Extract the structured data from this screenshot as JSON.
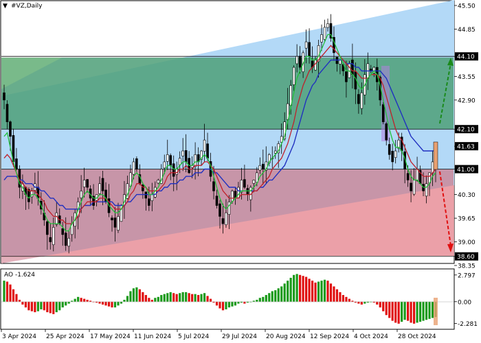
{
  "window": {
    "symbol_title": "#VZ,Daily",
    "oscillator_title": "AO -1.624"
  },
  "colors": {
    "background": "#ffffff",
    "up_channel": "#b3d9f7",
    "green_zone": "#4d9f78",
    "green_zone_light": "#86c389",
    "red_zone": "#c98d9e",
    "red_zone_light": "#f4a3a8",
    "candle": "#000000",
    "ma_fast": "#22c03a",
    "ma_mid": "#c0202a",
    "ma_slow": "#2030c0",
    "ao_up": "#1a9a1a",
    "ao_down": "#e01010",
    "arrow_up": "#1a8a1a",
    "arrow_down": "#e01010",
    "highlight_candle": "#e8a070",
    "purple_bar": "#b080e0"
  },
  "price_axis": {
    "labels": [
      "45.50",
      "44.85",
      "44.10",
      "43.55",
      "42.90",
      "42.10",
      "41.63",
      "41.00",
      "40.30",
      "39.65",
      "39.00",
      "38.60",
      "38.35"
    ],
    "highlighted": [
      "44.10",
      "42.10",
      "41.63",
      "41.00",
      "38.60"
    ]
  },
  "ao_axis": {
    "labels": [
      "2.797",
      "0.00",
      "-2.281"
    ]
  },
  "time_axis": {
    "labels": [
      "3 Apr 2024",
      "25 Apr 2024",
      "17 May 2024",
      "11 Jun 2024",
      "5 Jul 2024",
      "29 Jul 2024",
      "20 Aug 2024",
      "12 Sep 2024",
      "4 Oct 2024",
      "28 Oct 2024"
    ]
  },
  "chart_data": {
    "type": "candlestick",
    "symbol": "#VZ",
    "timeframe": "Daily",
    "ylim": [
      38.35,
      45.5
    ],
    "levels": [
      44.1,
      42.1,
      41.0,
      38.6
    ],
    "last_price": 41.0,
    "closes": [
      42.9,
      42.3,
      41.9,
      41.2,
      41.0,
      40.5,
      40.6,
      40.3,
      40.1,
      40.4,
      40.6,
      40.2,
      39.9,
      39.6,
      39.2,
      39.0,
      39.4,
      39.8,
      39.5,
      39.2,
      38.9,
      39.1,
      39.5,
      39.8,
      40.1,
      40.4,
      40.7,
      40.5,
      40.2,
      40.0,
      40.3,
      40.6,
      40.4,
      40.1,
      39.8,
      39.6,
      39.4,
      39.7,
      40.0,
      40.3,
      40.6,
      40.9,
      41.2,
      41.0,
      40.6,
      40.4,
      40.2,
      40.0,
      40.3,
      40.5,
      40.7,
      41.0,
      41.2,
      41.4,
      41.1,
      40.8,
      41.0,
      41.3,
      41.5,
      41.2,
      40.9,
      41.1,
      41.4,
      41.2,
      41.5,
      41.8,
      41.3,
      40.8,
      40.4,
      40.0,
      39.7,
      39.5,
      39.8,
      40.1,
      40.4,
      40.2,
      40.5,
      40.7,
      40.5,
      40.3,
      40.5,
      40.7,
      40.9,
      41.1,
      41.0,
      41.2,
      41.4,
      41.3,
      41.5,
      41.7,
      41.9,
      42.3,
      42.8,
      43.3,
      43.8,
      44.1,
      43.8,
      44.2,
      44.5,
      44.1,
      43.8,
      44.0,
      44.4,
      44.7,
      44.9,
      45.0,
      44.6,
      44.2,
      43.9,
      44.0,
      43.7,
      43.4,
      43.9,
      43.6,
      43.2,
      42.8,
      43.1,
      43.6,
      43.9,
      43.7,
      43.8,
      43.4,
      42.9,
      42.3,
      41.8,
      41.4,
      41.2,
      41.5,
      41.8,
      41.5,
      41.0,
      40.7,
      40.4,
      40.7,
      41.0,
      40.6,
      40.4,
      40.6,
      40.9,
      41.2,
      41.0
    ],
    "fast_ma": [
      41.9,
      42.0,
      41.6,
      41.2,
      40.9,
      40.6,
      40.5,
      40.3,
      40.2,
      40.3,
      40.3,
      40.2,
      40.0,
      39.8,
      39.6,
      39.5,
      39.5,
      39.5,
      39.5,
      39.4,
      39.3,
      39.3,
      39.5,
      39.6,
      39.9,
      40.1,
      40.3,
      40.4,
      40.3,
      40.2,
      40.2,
      40.3,
      40.3,
      40.2,
      40.0,
      39.9,
      39.8,
      39.8,
      39.9,
      40.1,
      40.3,
      40.5,
      40.8,
      40.9,
      40.8,
      40.6,
      40.5,
      40.3,
      40.3,
      40.4,
      40.5,
      40.7,
      40.9,
      41.1,
      41.1,
      41.0,
      41.0,
      41.1,
      41.2,
      41.2,
      41.1,
      41.1,
      41.2,
      41.2,
      41.3,
      41.4,
      41.3,
      41.1,
      40.8,
      40.5,
      40.2,
      40.0,
      39.9,
      40.0,
      40.1,
      40.2,
      40.3,
      40.4,
      40.4,
      40.4,
      40.4,
      40.5,
      40.6,
      40.8,
      40.9,
      41.0,
      41.2,
      41.3,
      41.4,
      41.5,
      41.7,
      41.9,
      42.3,
      42.7,
      43.1,
      43.5,
      43.7,
      43.9,
      44.1,
      44.1,
      44.0,
      44.0,
      44.1,
      44.3,
      44.5,
      44.7,
      44.7,
      44.5,
      44.3,
      44.1,
      43.9,
      43.7,
      43.7,
      43.6,
      43.5,
      43.3,
      43.2,
      43.3,
      43.5,
      43.6,
      43.7,
      43.6,
      43.3,
      42.9,
      42.5,
      42.1,
      41.8,
      41.6,
      41.6,
      41.5,
      41.3,
      41.0,
      40.8,
      40.7,
      40.7,
      40.6,
      40.5,
      40.5,
      40.6,
      40.8,
      40.9
    ],
    "mid_ma": [
      41.3,
      41.4,
      41.3,
      41.1,
      40.9,
      40.7,
      40.6,
      40.5,
      40.4,
      40.4,
      40.4,
      40.3,
      40.2,
      40.1,
      39.9,
      39.8,
      39.7,
      39.7,
      39.6,
      39.6,
      39.5,
      39.5,
      39.5,
      39.6,
      39.7,
      39.9,
      40.0,
      40.1,
      40.1,
      40.1,
      40.1,
      40.2,
      40.2,
      40.2,
      40.1,
      40.0,
      39.9,
      39.9,
      39.9,
      40.0,
      40.1,
      40.3,
      40.4,
      40.6,
      40.6,
      40.5,
      40.5,
      40.4,
      40.4,
      40.4,
      40.4,
      40.5,
      40.6,
      40.8,
      40.9,
      40.9,
      40.9,
      41.0,
      41.0,
      41.1,
      41.0,
      41.0,
      41.1,
      41.1,
      41.1,
      41.2,
      41.2,
      41.1,
      41.0,
      40.8,
      40.6,
      40.4,
      40.3,
      40.2,
      40.2,
      40.2,
      40.2,
      40.3,
      40.3,
      40.3,
      40.3,
      40.4,
      40.4,
      40.5,
      40.6,
      40.7,
      40.8,
      41.0,
      41.1,
      41.2,
      41.3,
      41.5,
      41.7,
      42.0,
      42.3,
      42.7,
      43.0,
      43.3,
      43.5,
      43.7,
      43.8,
      43.9,
      44.0,
      44.1,
      44.2,
      44.3,
      44.4,
      44.3,
      44.2,
      44.1,
      44.0,
      43.9,
      43.8,
      43.7,
      43.7,
      43.6,
      43.5,
      43.5,
      43.5,
      43.6,
      43.6,
      43.6,
      43.5,
      43.3,
      43.0,
      42.7,
      42.4,
      42.1,
      41.9,
      41.8,
      41.6,
      41.4,
      41.2,
      41.1,
      41.0,
      40.9,
      40.8,
      40.8,
      40.8,
      40.9,
      41.0
    ],
    "slow_ma": [
      40.7,
      40.8,
      40.8,
      40.8,
      40.8,
      40.7,
      40.7,
      40.6,
      40.6,
      40.6,
      40.5,
      40.5,
      40.4,
      40.4,
      40.3,
      40.2,
      40.2,
      40.1,
      40.0,
      40.0,
      39.9,
      39.9,
      39.9,
      39.9,
      39.9,
      39.9,
      40.0,
      40.0,
      40.0,
      40.1,
      40.1,
      40.1,
      40.1,
      40.1,
      40.1,
      40.1,
      40.0,
      40.0,
      40.0,
      40.0,
      40.1,
      40.1,
      40.2,
      40.3,
      40.3,
      40.3,
      40.3,
      40.3,
      40.3,
      40.3,
      40.4,
      40.4,
      40.5,
      40.5,
      40.6,
      40.6,
      40.6,
      40.7,
      40.7,
      40.8,
      40.8,
      40.8,
      40.9,
      40.9,
      40.9,
      41.0,
      41.0,
      41.0,
      40.9,
      40.9,
      40.8,
      40.7,
      40.6,
      40.5,
      40.5,
      40.5,
      40.4,
      40.4,
      40.4,
      40.4,
      40.4,
      40.4,
      40.4,
      40.5,
      40.5,
      40.6,
      40.7,
      40.7,
      40.8,
      40.9,
      41.0,
      41.1,
      41.3,
      41.5,
      41.7,
      42.0,
      42.3,
      42.6,
      42.9,
      43.1,
      43.3,
      43.4,
      43.6,
      43.7,
      43.8,
      43.9,
      44.0,
      44.0,
      44.0,
      44.0,
      44.0,
      43.9,
      43.9,
      43.9,
      43.8,
      43.8,
      43.7,
      43.7,
      43.7,
      43.7,
      43.7,
      43.7,
      43.7,
      43.6,
      43.5,
      43.3,
      43.1,
      42.9,
      42.7,
      42.5,
      42.3,
      42.1,
      41.9,
      41.8,
      41.7,
      41.6,
      41.5,
      41.5,
      41.5,
      41.5,
      41.5
    ],
    "ao_values": [
      2.2,
      2.1,
      1.8,
      1.3,
      0.8,
      0.2,
      -0.3,
      -0.6,
      -0.9,
      -1.0,
      -1.1,
      -1.0,
      -0.8,
      -0.9,
      -1.1,
      -1.2,
      -1.3,
      -1.1,
      -0.9,
      -0.6,
      -0.4,
      -0.2,
      0.1,
      0.3,
      0.5,
      0.4,
      0.3,
      0.2,
      0.1,
      0.0,
      -0.1,
      -0.2,
      -0.3,
      -0.4,
      -0.5,
      -0.6,
      -0.6,
      -0.4,
      -0.2,
      0.2,
      0.6,
      1.1,
      1.4,
      1.5,
      1.3,
      1.0,
      0.7,
      0.4,
      0.2,
      0.4,
      0.5,
      0.7,
      0.8,
      0.9,
      1.0,
      0.9,
      0.8,
      0.9,
      1.0,
      1.0,
      0.9,
      0.8,
      0.8,
      0.7,
      0.8,
      0.9,
      0.6,
      0.3,
      -0.1,
      -0.4,
      -0.7,
      -0.9,
      -0.8,
      -0.6,
      -0.5,
      -0.4,
      -0.2,
      -0.1,
      -0.2,
      -0.1,
      0.0,
      0.1,
      0.2,
      0.4,
      0.5,
      0.7,
      0.9,
      1.1,
      1.2,
      1.4,
      1.6,
      1.9,
      2.2,
      2.5,
      2.8,
      2.9,
      2.8,
      2.7,
      2.6,
      2.4,
      2.2,
      2.0,
      2.1,
      2.2,
      2.3,
      2.2,
      1.9,
      1.6,
      1.3,
      1.0,
      0.7,
      0.5,
      0.3,
      0.1,
      -0.1,
      -0.2,
      -0.3,
      -0.2,
      -0.1,
      0.0,
      -0.1,
      -0.3,
      -0.6,
      -1.0,
      -1.4,
      -1.7,
      -2.0,
      -2.2,
      -2.3,
      -2.1,
      -1.9,
      -2.0,
      -2.2,
      -2.3,
      -2.2,
      -2.1,
      -2.0,
      -1.9,
      -1.8,
      -1.7,
      -1.6
    ],
    "ao_ylim": [
      -2.6,
      3.0
    ],
    "x_tick_labels": [
      "3 Apr 2024",
      "25 Apr 2024",
      "17 May 2024",
      "11 Jun 2024",
      "5 Jul 2024",
      "29 Jul 2024",
      "20 Aug 2024",
      "12 Sep 2024",
      "4 Oct 2024",
      "28 Oct 2024"
    ],
    "title": "#VZ,Daily",
    "grid": false
  }
}
